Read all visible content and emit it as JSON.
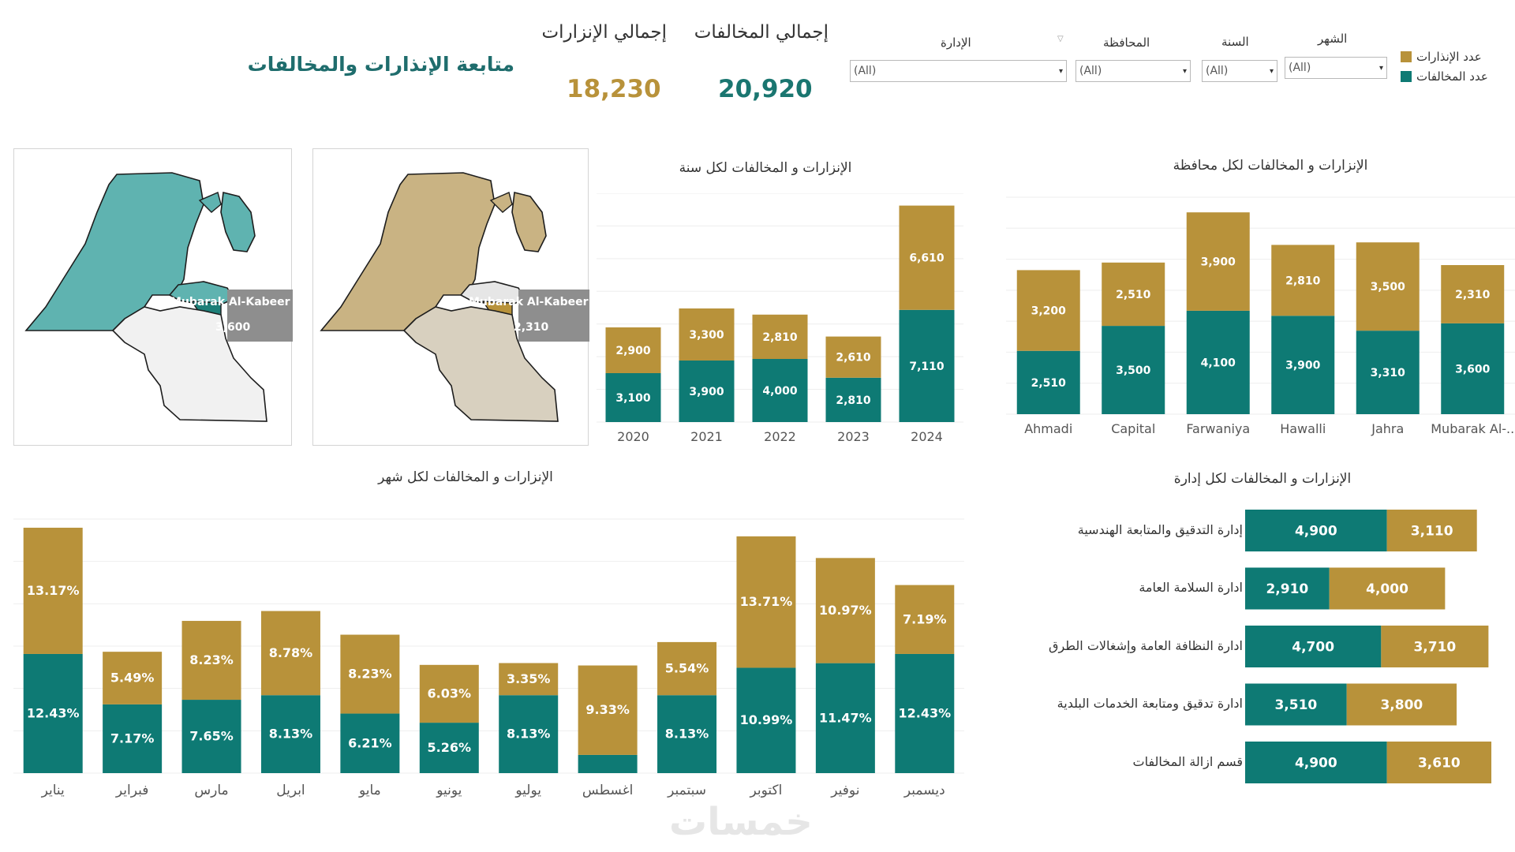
{
  "header": {
    "title": "متابعة الإنذارات والمخالفات",
    "kpi_warnings_label": "إجمالي الإنزارات",
    "kpi_warnings_value": "18,230",
    "kpi_violations_label": "إجمالي  المخالفات",
    "kpi_violations_value": "20,920"
  },
  "filters": {
    "admin": {
      "label": "الإدارة",
      "value": "(All)"
    },
    "governorate": {
      "label": "المحافظة",
      "value": "(All)"
    },
    "year": {
      "label": "السنة",
      "value": "(All)"
    },
    "month": {
      "label": "الشهر",
      "value": "(All)"
    }
  },
  "legend": {
    "warnings": "عدد الإنذارات",
    "violations": "عدد المخالفات"
  },
  "colors": {
    "warnings": "#b8923a",
    "violations": "#0e7a74",
    "title": "#1f6d6d",
    "map_violations": "#5fb3b0",
    "map_warnings": "#c9b383",
    "map_light": "#f1f1f1",
    "map_light_warm": "#d8d0bf",
    "map_selected_teal": "#1d7f78"
  },
  "maps": [
    {
      "label": "Mubarak Al-Kabeer",
      "value": "3,600"
    },
    {
      "label": "Mubarak Al-Kabeer",
      "value": "2,310"
    }
  ],
  "chart_data": [
    {
      "id": "by_year",
      "type": "bar",
      "stacked": true,
      "title": "الإنزارات و المخالفات لكل سنة",
      "categories": [
        "2020",
        "2021",
        "2022",
        "2023",
        "2024"
      ],
      "series": [
        {
          "name": "عدد المخالفات",
          "values": [
            3100,
            3900,
            4000,
            2810,
            7110
          ],
          "labels": [
            "3,100",
            "3,900",
            "4,000",
            "2,810",
            "7,110"
          ]
        },
        {
          "name": "عدد الإنذارات",
          "values": [
            2900,
            3300,
            2810,
            2610,
            6610
          ],
          "labels": [
            "2,900",
            "3,300",
            "2,810",
            "2,610",
            "6,610"
          ]
        }
      ],
      "ylim": [
        0,
        14500
      ]
    },
    {
      "id": "by_governorate",
      "type": "bar",
      "stacked": true,
      "title": "الإنزارات و المخالفات لكل محافظة",
      "categories": [
        "Ahmadi",
        "Capital",
        "Farwaniya",
        "Hawalli",
        "Jahra",
        "Mubarak Al-.."
      ],
      "series": [
        {
          "name": "عدد المخالفات",
          "values": [
            2510,
            3500,
            4100,
            3900,
            3310,
            3600
          ],
          "labels": [
            "2,510",
            "3,500",
            "4,100",
            "3,900",
            "3,310",
            "3,600"
          ]
        },
        {
          "name": "عدد الإنذارات",
          "values": [
            3200,
            2510,
            3900,
            2810,
            3500,
            2310
          ],
          "labels": [
            "3,200",
            "2,510",
            "3,900",
            "2,810",
            "3,500",
            "2,310"
          ]
        }
      ],
      "ylim": [
        0,
        8600
      ]
    },
    {
      "id": "by_month",
      "type": "bar",
      "stacked": true,
      "unit": "percent",
      "title": "الإنزارات و المخالفات لكل شهر",
      "categories": [
        "يناير",
        "فبراير",
        "مارس",
        "ابريل",
        "مايو",
        "يونيو",
        "يوليو",
        "اغسطس",
        "سبتمبر",
        "اكتوبر",
        "نوفير",
        "ديسمبر"
      ],
      "series": [
        {
          "name": "عدد المخالفات",
          "values": [
            12.43,
            7.17,
            7.65,
            8.13,
            6.21,
            5.26,
            8.13,
            1.9,
            8.13,
            10.99,
            11.47,
            12.43
          ],
          "labels": [
            "12.43%",
            "7.17%",
            "7.65%",
            "8.13%",
            "6.21%",
            "5.26%",
            "8.13%",
            "",
            "8.13%",
            "10.99%",
            "11.47%",
            "12.43%"
          ]
        },
        {
          "name": "عدد الإنذارات",
          "values": [
            13.17,
            5.49,
            8.23,
            8.78,
            8.23,
            6.03,
            3.35,
            9.33,
            5.54,
            13.71,
            10.97,
            7.19
          ],
          "labels": [
            "13.17%",
            "5.49%",
            "8.23%",
            "8.78%",
            "8.23%",
            "6.03%",
            "3.35%",
            "9.33%",
            "5.54%",
            "13.71%",
            "10.97%",
            "7.19%"
          ]
        }
      ],
      "ylim": [
        0,
        26.5
      ]
    },
    {
      "id": "by_department",
      "type": "bar",
      "orientation": "horizontal",
      "stacked": true,
      "title": "الإنزارات و المخالفات لكل إدارة",
      "categories": [
        "إدارة التدقيق والمتابعة الهندسية",
        "ادارة السلامة العامة",
        "ادارة النظافة العامة وإشغالات الطرق",
        "ادارة تدقيق ومتابعة الخدمات البلدية",
        "قسم ازالة المخالفات"
      ],
      "series": [
        {
          "name": "عدد المخالفات",
          "values": [
            4900,
            2910,
            4700,
            3510,
            4900
          ],
          "labels": [
            "4,900",
            "2,910",
            "4,700",
            "3,510",
            "4,900"
          ]
        },
        {
          "name": "عدد الإنذارات",
          "values": [
            3110,
            4000,
            3710,
            3800,
            3610
          ],
          "labels": [
            "3,110",
            "4,000",
            "3,710",
            "3,800",
            "3,610"
          ]
        }
      ],
      "xlim": [
        0,
        9000
      ]
    }
  ],
  "watermark": "خمسات"
}
